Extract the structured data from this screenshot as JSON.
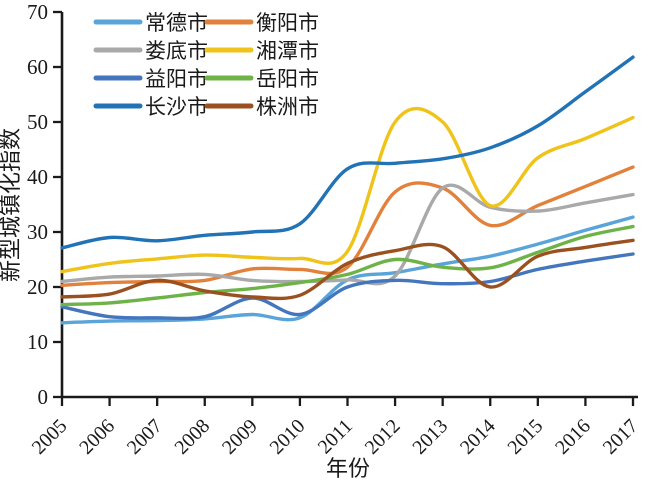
{
  "chart_data": {
    "type": "line",
    "title": "",
    "xlabel": "年份",
    "ylabel": "新型城镇化指数",
    "x": [
      2005,
      2006,
      2007,
      2008,
      2009,
      2010,
      2011,
      2012,
      2013,
      2014,
      2015,
      2016,
      2017
    ],
    "ylim": [
      0,
      70
    ],
    "yticks": [
      0,
      10,
      20,
      30,
      40,
      50,
      60,
      70
    ],
    "grid": false,
    "line_style": "smooth",
    "legend": {
      "position": "top-left",
      "columns": 2,
      "row_major": true
    },
    "series": [
      {
        "name": "常德市",
        "color": "#5AA4DA",
        "values": [
          13.5,
          13.8,
          13.9,
          14.2,
          15.0,
          14.4,
          21.3,
          22.6,
          24.2,
          25.6,
          27.8,
          30.3,
          32.7
        ]
      },
      {
        "name": "衡阳市",
        "color": "#E2813B",
        "values": [
          20.3,
          20.8,
          21.0,
          21.2,
          23.3,
          23.2,
          23.6,
          37.3,
          38.0,
          31.2,
          34.8,
          38.3,
          41.8
        ]
      },
      {
        "name": "娄底市",
        "color": "#A9A9A9",
        "values": [
          21.0,
          21.8,
          22.0,
          22.3,
          21.2,
          21.0,
          21.3,
          22.0,
          38.0,
          34.5,
          33.8,
          35.3,
          36.8
        ]
      },
      {
        "name": "湘潭市",
        "color": "#EFC319",
        "values": [
          22.8,
          24.3,
          25.1,
          25.8,
          25.4,
          25.2,
          26.5,
          50.0,
          50.0,
          34.8,
          43.5,
          47.0,
          50.8
        ]
      },
      {
        "name": "益阳市",
        "color": "#4376BD",
        "values": [
          16.4,
          14.6,
          14.4,
          14.6,
          18.0,
          15.0,
          20.0,
          21.2,
          20.6,
          21.0,
          23.2,
          24.7,
          26.0
        ]
      },
      {
        "name": "岳阳市",
        "color": "#6EB348",
        "values": [
          16.8,
          17.1,
          18.0,
          19.0,
          19.7,
          20.8,
          22.3,
          25.0,
          23.6,
          23.5,
          26.3,
          29.2,
          31.0
        ]
      },
      {
        "name": "长沙市",
        "color": "#2273B5",
        "values": [
          27.1,
          29.0,
          28.4,
          29.4,
          30.0,
          31.5,
          41.5,
          42.5,
          43.3,
          45.3,
          49.3,
          55.5,
          61.8
        ]
      },
      {
        "name": "株洲市",
        "color": "#9B511F",
        "values": [
          18.2,
          18.7,
          21.2,
          19.3,
          18.2,
          18.5,
          24.3,
          26.6,
          27.3,
          20.0,
          25.6,
          27.2,
          28.5
        ]
      }
    ]
  }
}
